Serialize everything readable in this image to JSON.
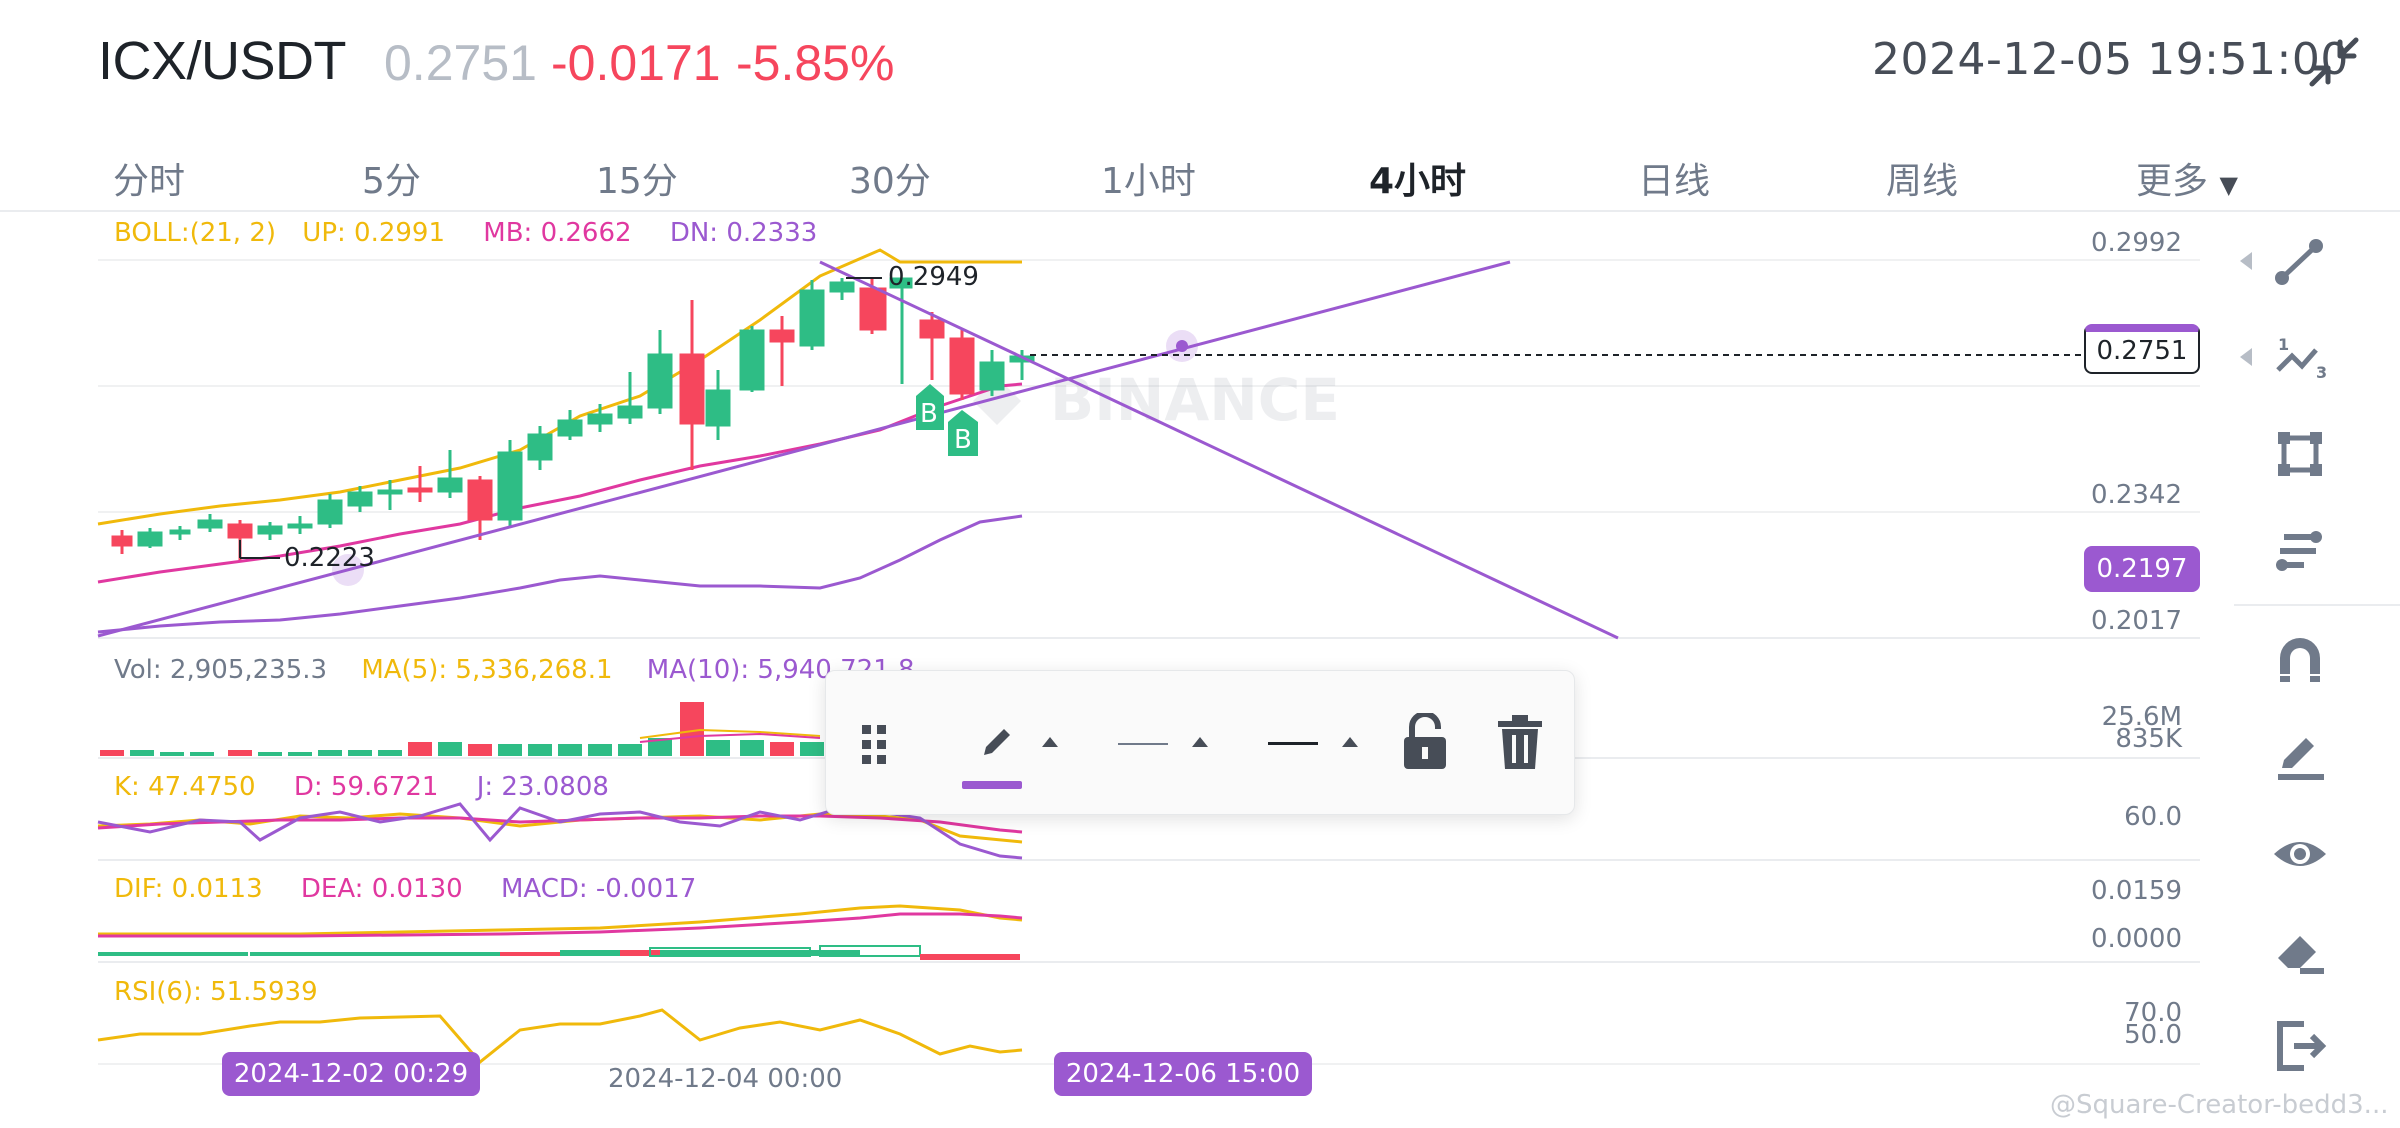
{
  "header": {
    "pair": "ICX/USDT",
    "price": "0.2751",
    "change": "-0.0171",
    "change_pct": "-5.85%",
    "datetime": "2024-12-05 19:51:00",
    "shrink_icon": "shrink-icon"
  },
  "tabs": [
    {
      "label": "分时",
      "active": false
    },
    {
      "label": "5分",
      "active": false
    },
    {
      "label": "15分",
      "active": false
    },
    {
      "label": "30分",
      "active": false
    },
    {
      "label": "1小时",
      "active": false
    },
    {
      "label": "4小时",
      "active": true
    },
    {
      "label": "日线",
      "active": false
    },
    {
      "label": "周线",
      "active": false
    },
    {
      "label": "更多",
      "active": false
    }
  ],
  "main": {
    "boll": "BOLL:(21, 2)",
    "up": "UP: 0.2991",
    "mb": "MB: 0.2662",
    "dn": "DN: 0.2333",
    "axis": [
      "0.2992",
      "0.2342",
      "0.2017"
    ],
    "current_price_tag": "0.2751",
    "cursor_price_tag": "0.2197",
    "high_label": "0.2949",
    "low_label": "0.2223",
    "watermark_logo": "BINANCE",
    "buy_markers": [
      "B",
      "B"
    ]
  },
  "volume": {
    "vol": "Vol: 2,905,235.3",
    "ma5": "MA(5): 5,336,268.1",
    "ma10": "MA(10): 5,940,721.8",
    "axis": [
      "25.6M",
      "835K"
    ]
  },
  "kdj": {
    "k": "K: 47.4750",
    "d": "D: 59.6721",
    "j": "J: 23.0808",
    "axis": [
      "60.0"
    ]
  },
  "macd": {
    "dif": "DIF: 0.0113",
    "dea": "DEA: 0.0130",
    "macd": "MACD: -0.0017",
    "axis": [
      "0.0159",
      "0.0000"
    ]
  },
  "rsi": {
    "rsi": "RSI(6): 51.5939",
    "axis": [
      "70.0",
      "50.0"
    ]
  },
  "time_axis": {
    "left_pill": "2024-12-02 00:29",
    "center": "2024-12-04 00:00",
    "right_pill": "2024-12-06 15:00"
  },
  "draw_toolbar": {
    "icons": [
      "drag-handle-icon",
      "pencil-icon",
      "line-thin-icon",
      "line-thick-icon",
      "unlock-icon",
      "trash-icon"
    ]
  },
  "side_tools": [
    "trendline-icon",
    "fib-icon",
    "rectangle-icon",
    "parallel-lines-icon",
    "magnet-icon",
    "brush-icon",
    "eye-icon",
    "eraser-icon",
    "exit-icon"
  ],
  "watermark": "@Square-Creator-bedd3...",
  "colors": {
    "up": "#2ebd85",
    "down": "#f6465d",
    "accent": "#9b59d0",
    "boll_up": "#f0b90b",
    "boll_mb": "#e038a0"
  }
}
